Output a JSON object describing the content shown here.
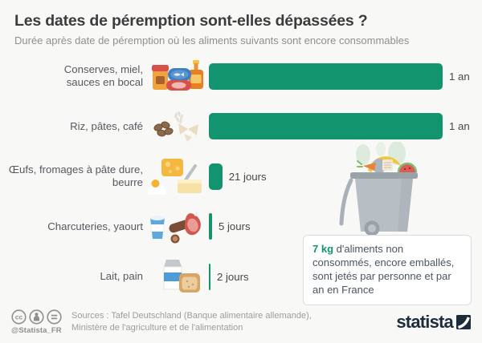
{
  "chart_data": {
    "type": "bar",
    "orientation": "horizontal",
    "title": "Les dates de péremption sont-elles dépassées ?",
    "subtitle": "Durée après date de péremption où les aliments suivants sont encore consommables",
    "unit": "durée en jours",
    "x_max_days": 365,
    "bar_color": "#12946F",
    "rows": [
      {
        "category": "Conserves, miel, sauces en bocal",
        "label_lines": [
          "Conserves, miel,",
          "sauces en bocal"
        ],
        "days": 365,
        "value_label": "1 an",
        "icon": "preserves-honey-jarred-sauces-icon"
      },
      {
        "category": "Riz, pâtes, café",
        "label_lines": [
          "Riz, pâtes, café"
        ],
        "days": 365,
        "value_label": "1 an",
        "icon": "rice-pasta-coffee-icon"
      },
      {
        "category": "Œufs, fromages à pâte dure, beurre",
        "label_lines": [
          "Œufs, fromages à pâte dure,",
          "beurre"
        ],
        "days": 21,
        "value_label": "21 jours",
        "icon": "eggs-hard-cheese-butter-icon"
      },
      {
        "category": "Charcuteries, yaourt",
        "label_lines": [
          "Charcuteries, yaourt"
        ],
        "days": 5,
        "value_label": "5 jours",
        "icon": "cold-cuts-yogurt-icon"
      },
      {
        "category": "Lait, pain",
        "label_lines": [
          "Lait, pain"
        ],
        "days": 2,
        "value_label": "2 jours",
        "icon": "milk-bread-icon"
      }
    ],
    "annotation": {
      "highlight": "7 kg",
      "text": "d'aliments non consommés, encore emballés, sont jetés par personne et par an en France",
      "illustration": "trash-bin-with-food-waste"
    }
  },
  "footer": {
    "license_icons": [
      "cc-icon",
      "attribution-person-icon",
      "equals-icon"
    ],
    "handle": "@Statista_FR",
    "sources_line1": "Sources : Tafel Deutschland (Banque alimentaire allemande),",
    "sources_line2": "Ministère de l'agriculture et de l'alimentation",
    "brand": "statista"
  }
}
